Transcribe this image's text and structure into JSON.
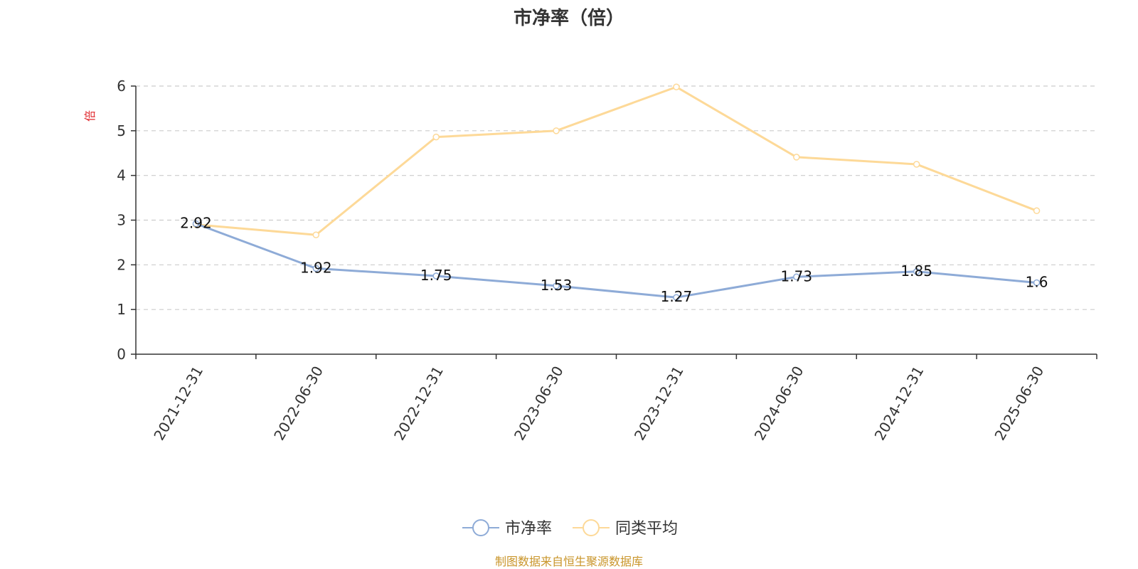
{
  "chart_data": {
    "type": "line",
    "title": "市净率（倍）",
    "ylabel": "倍",
    "xlabel": "",
    "categories": [
      "2021-12-31",
      "2022-06-30",
      "2022-12-31",
      "2023-06-30",
      "2023-12-31",
      "2024-06-30",
      "2024-12-31",
      "2025-06-30"
    ],
    "ylim": [
      0,
      6
    ],
    "yticks": [
      "0",
      "1",
      "2",
      "3",
      "4",
      "5",
      "6"
    ],
    "grid": true,
    "legend_position": "bottom-center",
    "series": [
      {
        "name": "市净率",
        "color": "#8eabd7",
        "values": [
          2.92,
          1.92,
          1.75,
          1.53,
          1.27,
          1.73,
          1.85,
          1.6
        ],
        "labels": [
          "2.92",
          "1.92",
          "1.75",
          "1.53",
          "1.27",
          "1.73",
          "1.85",
          "1.6"
        ]
      },
      {
        "name": "同类平均",
        "color": "#fdd998",
        "values": [
          2.9,
          2.67,
          4.86,
          5.0,
          5.98,
          4.41,
          4.25,
          3.21
        ]
      }
    ]
  },
  "footer": {
    "source_text": "制图数据来自恒生聚源数据库"
  },
  "colors": {
    "ylabel_color": "#e0282e",
    "footer_color": "#c9952a",
    "axis_color": "#333333",
    "grid_color": "#cccccc"
  }
}
